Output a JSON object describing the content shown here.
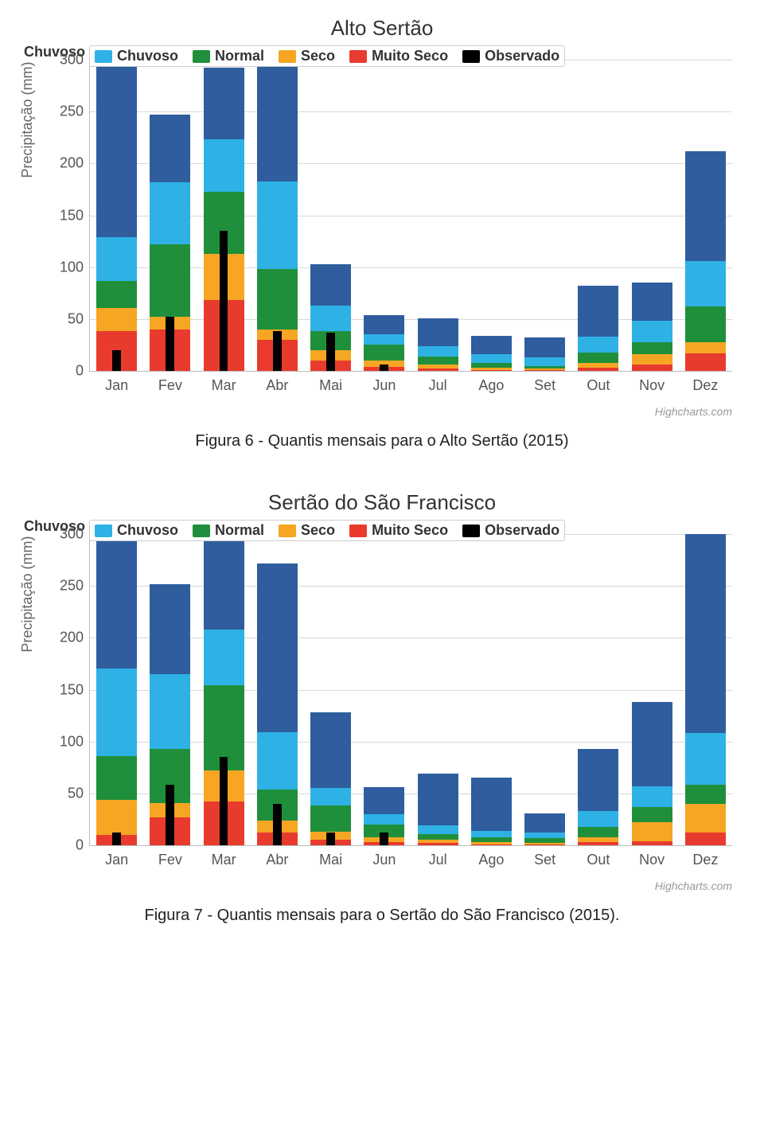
{
  "charts": [
    {
      "title": "Alto Sertão",
      "outside_legend_label": "Chuvoso",
      "caption": "Figura 6 - Quantis mensais para o Alto Sertão (2015)",
      "ylabel": "Precipitação (mm)",
      "ymax": 300,
      "ytick_step": 50,
      "credits": "Highcharts.com",
      "categories": [
        "Jan",
        "Fev",
        "Mar",
        "Abr",
        "Mai",
        "Jun",
        "Jul",
        "Ago",
        "Set",
        "Out",
        "Nov",
        "Dez"
      ],
      "series": {
        "muito_seco": [
          42,
          40,
          68,
          30,
          10,
          4,
          2,
          1,
          1,
          3,
          6,
          17
        ],
        "seco": [
          25,
          12,
          45,
          10,
          10,
          6,
          4,
          2,
          1,
          5,
          10,
          11
        ],
        "normal": [
          28,
          70,
          60,
          58,
          18,
          15,
          8,
          5,
          3,
          10,
          12,
          34
        ],
        "chuvoso": [
          47,
          60,
          50,
          85,
          25,
          10,
          10,
          8,
          8,
          15,
          20,
          44
        ],
        "muito_chuvoso": [
          188,
          65,
          69,
          117,
          40,
          19,
          27,
          18,
          19,
          49,
          37,
          106
        ]
      },
      "observado": [
        20,
        52,
        135,
        38,
        37,
        6,
        0,
        0,
        0,
        0,
        0,
        0
      ]
    },
    {
      "title": "Sertão do São Francisco",
      "outside_legend_label": "Chuvoso",
      "caption": "Figura 7 - Quantis mensais para o Sertão do São Francisco (2015).",
      "ylabel": "Precipitação (mm)",
      "ymax": 300,
      "ytick_step": 50,
      "credits": "Highcharts.com",
      "categories": [
        "Jan",
        "Fev",
        "Mar",
        "Abr",
        "Mai",
        "Jun",
        "Jul",
        "Ago",
        "Set",
        "Out",
        "Nov",
        "Dez"
      ],
      "series": {
        "muito_seco": [
          10,
          27,
          42,
          12,
          5,
          3,
          2,
          1,
          1,
          3,
          4,
          12
        ],
        "seco": [
          34,
          14,
          30,
          12,
          8,
          5,
          3,
          2,
          1,
          5,
          18,
          28
        ],
        "normal": [
          42,
          52,
          82,
          30,
          25,
          12,
          6,
          5,
          5,
          10,
          15,
          18
        ],
        "chuvoso": [
          84,
          72,
          54,
          55,
          17,
          10,
          8,
          6,
          5,
          15,
          20,
          50
        ],
        "muito_chuvoso": [
          125,
          87,
          85,
          163,
          73,
          26,
          50,
          51,
          19,
          60,
          81,
          192
        ]
      },
      "observado": [
        12,
        58,
        85,
        40,
        12,
        12,
        0,
        0,
        0,
        0,
        0,
        0
      ]
    }
  ],
  "legend": [
    {
      "key": "chuvoso",
      "label": "Chuvoso",
      "color": "#2eb2e6"
    },
    {
      "key": "normal",
      "label": "Normal",
      "color": "#1f8f3b"
    },
    {
      "key": "seco",
      "label": "Seco",
      "color": "#f6a623"
    },
    {
      "key": "muito_seco",
      "label": "Muito Seco",
      "color": "#e83b2e"
    },
    {
      "key": "observado",
      "label": "Observado",
      "color": "#000000"
    }
  ],
  "colors": {
    "muito_chuvoso": "#2f5d9e",
    "chuvoso": "#2eb2e6",
    "normal": "#1f8f3b",
    "seco": "#f6a623",
    "muito_seco": "#e83b2e",
    "observado": "#000000",
    "grid": "#d8d8d8",
    "axis": "#bbbbbb",
    "bg": "#ffffff"
  },
  "stack_order": [
    "muito_seco",
    "seco",
    "normal",
    "chuvoso",
    "muito_chuvoso"
  ],
  "typography": {
    "title_fontsize": 26,
    "axis_label_fontsize": 18,
    "tick_fontsize": 18,
    "legend_fontsize": 18,
    "caption_fontsize": 20
  }
}
